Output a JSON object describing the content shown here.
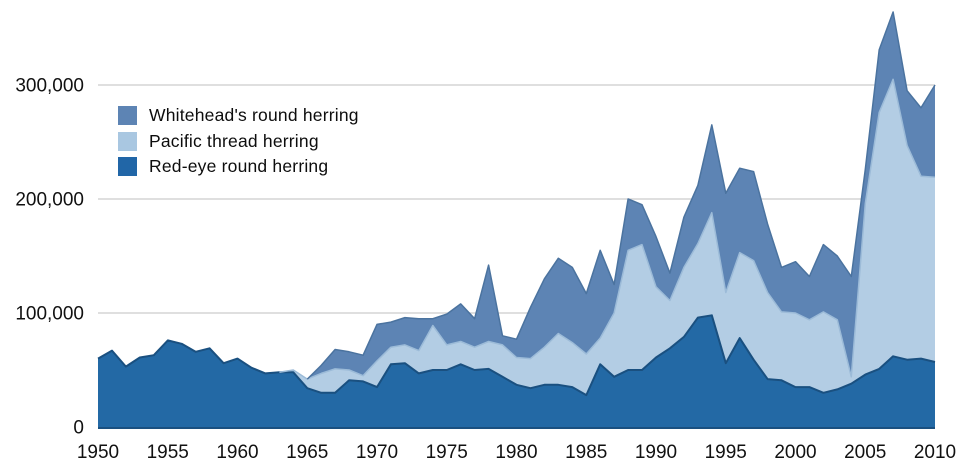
{
  "chart_data": {
    "type": "area",
    "stacked": true,
    "title": "",
    "xlabel": "",
    "ylabel": "",
    "grid": "horizontal-100000-steps",
    "legend_position": "inside-top-left",
    "x": [
      1950,
      1951,
      1952,
      1953,
      1954,
      1955,
      1956,
      1957,
      1958,
      1959,
      1960,
      1961,
      1962,
      1963,
      1964,
      1965,
      1966,
      1967,
      1968,
      1969,
      1970,
      1971,
      1972,
      1973,
      1974,
      1975,
      1976,
      1977,
      1978,
      1979,
      1980,
      1981,
      1982,
      1983,
      1984,
      1985,
      1986,
      1987,
      1988,
      1989,
      1990,
      1991,
      1992,
      1993,
      1994,
      1995,
      1996,
      1997,
      1998,
      1999,
      2000,
      2001,
      2002,
      2003,
      2004,
      2005,
      2006,
      2007,
      2008,
      2009,
      2010
    ],
    "x_ticks": {
      "values": [
        1950,
        1955,
        1960,
        1965,
        1970,
        1975,
        1980,
        1985,
        1990,
        1995,
        2000,
        2005,
        2010
      ],
      "labels": [
        "1950",
        "1955",
        "1960",
        "1965",
        "1970",
        "1975",
        "1980",
        "1985",
        "1990",
        "1995",
        "2000",
        "2005",
        "2010"
      ]
    },
    "y_ticks": {
      "values": [
        0,
        100000,
        200000,
        300000
      ],
      "labels": [
        "0",
        "100,000",
        "200,000",
        "300,000"
      ]
    },
    "ylim": [
      0,
      375000
    ],
    "xlim": [
      1950,
      2010
    ],
    "series": [
      {
        "name": "Red-eye round herring",
        "color": "#2369a5",
        "edge_color": "#1a5080",
        "values": [
          60000,
          67000,
          53000,
          61000,
          63000,
          76000,
          73000,
          66000,
          69000,
          56000,
          60000,
          52000,
          47000,
          48000,
          48000,
          34000,
          30000,
          30000,
          41000,
          40000,
          35000,
          55000,
          56000,
          47000,
          50000,
          50000,
          55000,
          50000,
          51000,
          44000,
          37000,
          34000,
          37000,
          37000,
          35000,
          28000,
          55000,
          44000,
          50000,
          50000,
          61000,
          69000,
          79000,
          96000,
          98000,
          56000,
          78000,
          59000,
          42000,
          41000,
          35000,
          35000,
          30000,
          33000,
          38000,
          46000,
          51000,
          62000,
          59000,
          60000,
          57000
        ]
      },
      {
        "name": "Pacific thread herring",
        "color": "#b3cde4",
        "edge_color": "#9cbbd8",
        "values": [
          0,
          0,
          0,
          0,
          0,
          0,
          0,
          0,
          0,
          0,
          0,
          0,
          0,
          0,
          2000,
          8000,
          17000,
          21000,
          9000,
          5000,
          23000,
          15000,
          16000,
          20000,
          39000,
          22000,
          20000,
          20000,
          24000,
          28000,
          24000,
          26000,
          33000,
          45000,
          39000,
          36000,
          23000,
          56000,
          105000,
          110000,
          62000,
          42000,
          61000,
          65000,
          90000,
          62000,
          75000,
          87000,
          76000,
          60000,
          65000,
          59000,
          71000,
          61000,
          6000,
          150000,
          225000,
          243000,
          188000,
          160000,
          162000
        ]
      },
      {
        "name": "Whitehead's round herring",
        "color": "#5d84b4",
        "edge_color": "#4b739f",
        "values": [
          0,
          0,
          0,
          0,
          0,
          0,
          0,
          0,
          0,
          0,
          0,
          0,
          0,
          0,
          0,
          0,
          7000,
          17000,
          16000,
          18000,
          32000,
          22000,
          24000,
          28000,
          6000,
          27000,
          33000,
          25000,
          67000,
          8000,
          16000,
          45000,
          60000,
          66000,
          66000,
          53000,
          77000,
          25000,
          45000,
          35000,
          44000,
          24000,
          44000,
          51000,
          77000,
          87000,
          74000,
          78000,
          60000,
          39000,
          45000,
          38000,
          59000,
          56000,
          88000,
          30000,
          55000,
          59000,
          48000,
          60000,
          81000
        ]
      }
    ],
    "legend": {
      "items": [
        {
          "label": "Whitehead's round herring",
          "color": "#5d84b4"
        },
        {
          "label": "Pacific thread herring",
          "color": "#a9c7e1"
        },
        {
          "label": "Red-eye round herring",
          "color": "#2166a7"
        }
      ]
    },
    "gridline_color": "#cccccc",
    "tick_label_color": "#111111"
  }
}
